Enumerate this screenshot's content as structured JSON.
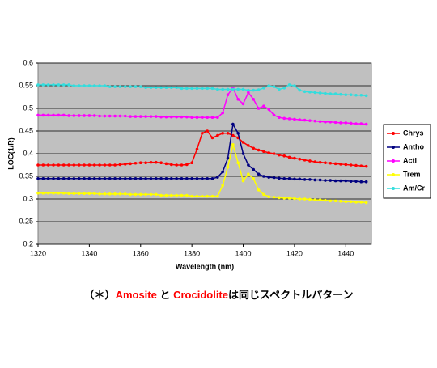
{
  "chart_data": {
    "type": "line",
    "y_label": "LOG(1/R)",
    "x_label": "Wavelength (nm)",
    "xlim": [
      1320,
      1450
    ],
    "xticks": [
      1320,
      1340,
      1360,
      1380,
      1400,
      1420,
      1440
    ],
    "ylim": [
      0.2,
      0.6
    ],
    "yticks": [
      0.2,
      0.25,
      0.3,
      0.35,
      0.4,
      0.45,
      0.5,
      0.55,
      0.6
    ],
    "grid": true,
    "legend": "right",
    "background": "#c0c0c0",
    "x": [
      1320,
      1322,
      1324,
      1326,
      1328,
      1330,
      1332,
      1334,
      1336,
      1338,
      1340,
      1342,
      1344,
      1346,
      1348,
      1350,
      1352,
      1354,
      1356,
      1358,
      1360,
      1362,
      1364,
      1366,
      1368,
      1370,
      1372,
      1374,
      1376,
      1378,
      1380,
      1382,
      1384,
      1386,
      1388,
      1390,
      1392,
      1394,
      1396,
      1398,
      1400,
      1402,
      1404,
      1406,
      1408,
      1410,
      1412,
      1414,
      1416,
      1418,
      1420,
      1422,
      1424,
      1426,
      1428,
      1430,
      1432,
      1434,
      1436,
      1438,
      1440,
      1442,
      1444,
      1446,
      1448
    ],
    "series": [
      {
        "name": "Chrys",
        "color": "#ff0000",
        "values": [
          0.375,
          0.375,
          0.375,
          0.375,
          0.375,
          0.375,
          0.375,
          0.375,
          0.375,
          0.375,
          0.375,
          0.375,
          0.375,
          0.375,
          0.375,
          0.375,
          0.376,
          0.377,
          0.378,
          0.379,
          0.38,
          0.38,
          0.381,
          0.381,
          0.38,
          0.378,
          0.376,
          0.375,
          0.375,
          0.376,
          0.38,
          0.41,
          0.445,
          0.45,
          0.435,
          0.44,
          0.445,
          0.445,
          0.44,
          0.435,
          0.425,
          0.418,
          0.412,
          0.408,
          0.405,
          0.402,
          0.4,
          0.397,
          0.395,
          0.392,
          0.39,
          0.388,
          0.386,
          0.384,
          0.382,
          0.381,
          0.38,
          0.379,
          0.378,
          0.377,
          0.376,
          0.375,
          0.374,
          0.373,
          0.372
        ]
      },
      {
        "name": "Antho",
        "color": "#000080",
        "values": [
          0.345,
          0.345,
          0.345,
          0.345,
          0.345,
          0.345,
          0.345,
          0.345,
          0.345,
          0.345,
          0.345,
          0.345,
          0.345,
          0.345,
          0.345,
          0.345,
          0.345,
          0.345,
          0.345,
          0.345,
          0.345,
          0.345,
          0.345,
          0.345,
          0.345,
          0.345,
          0.345,
          0.345,
          0.345,
          0.345,
          0.345,
          0.345,
          0.345,
          0.345,
          0.345,
          0.348,
          0.36,
          0.39,
          0.465,
          0.445,
          0.4,
          0.375,
          0.365,
          0.355,
          0.35,
          0.348,
          0.347,
          0.346,
          0.345,
          0.345,
          0.344,
          0.344,
          0.343,
          0.343,
          0.342,
          0.342,
          0.341,
          0.341,
          0.34,
          0.34,
          0.34,
          0.339,
          0.339,
          0.338,
          0.338
        ]
      },
      {
        "name": "Acti",
        "color": "#ff00ff",
        "values": [
          0.485,
          0.485,
          0.485,
          0.485,
          0.485,
          0.485,
          0.484,
          0.484,
          0.484,
          0.484,
          0.484,
          0.484,
          0.483,
          0.483,
          0.483,
          0.483,
          0.483,
          0.483,
          0.482,
          0.482,
          0.482,
          0.482,
          0.482,
          0.482,
          0.481,
          0.481,
          0.481,
          0.481,
          0.481,
          0.481,
          0.48,
          0.48,
          0.48,
          0.48,
          0.48,
          0.48,
          0.49,
          0.53,
          0.545,
          0.52,
          0.51,
          0.535,
          0.52,
          0.5,
          0.505,
          0.498,
          0.485,
          0.48,
          0.478,
          0.477,
          0.476,
          0.475,
          0.474,
          0.473,
          0.472,
          0.471,
          0.47,
          0.47,
          0.469,
          0.468,
          0.468,
          0.467,
          0.466,
          0.466,
          0.465
        ]
      },
      {
        "name": "Trem",
        "color": "#ffff00",
        "values": [
          0.313,
          0.313,
          0.313,
          0.313,
          0.313,
          0.313,
          0.312,
          0.312,
          0.312,
          0.312,
          0.312,
          0.312,
          0.311,
          0.311,
          0.311,
          0.311,
          0.311,
          0.311,
          0.31,
          0.31,
          0.31,
          0.31,
          0.31,
          0.31,
          0.308,
          0.308,
          0.308,
          0.308,
          0.308,
          0.308,
          0.306,
          0.306,
          0.306,
          0.306,
          0.306,
          0.306,
          0.33,
          0.37,
          0.42,
          0.38,
          0.34,
          0.355,
          0.345,
          0.32,
          0.31,
          0.305,
          0.304,
          0.303,
          0.302,
          0.302,
          0.301,
          0.3,
          0.3,
          0.299,
          0.298,
          0.298,
          0.297,
          0.296,
          0.296,
          0.295,
          0.294,
          0.294,
          0.293,
          0.293,
          0.292
        ]
      },
      {
        "name": "Am/Cr",
        "color": "#33dddd",
        "values": [
          0.552,
          0.552,
          0.552,
          0.552,
          0.552,
          0.552,
          0.552,
          0.55,
          0.55,
          0.55,
          0.55,
          0.55,
          0.55,
          0.55,
          0.548,
          0.548,
          0.548,
          0.548,
          0.548,
          0.548,
          0.548,
          0.546,
          0.546,
          0.546,
          0.546,
          0.546,
          0.546,
          0.546,
          0.544,
          0.544,
          0.544,
          0.544,
          0.544,
          0.544,
          0.544,
          0.542,
          0.542,
          0.542,
          0.542,
          0.542,
          0.542,
          0.54,
          0.54,
          0.541,
          0.545,
          0.55,
          0.548,
          0.542,
          0.545,
          0.552,
          0.55,
          0.54,
          0.537,
          0.536,
          0.535,
          0.534,
          0.533,
          0.532,
          0.532,
          0.531,
          0.53,
          0.53,
          0.529,
          0.529,
          0.528
        ]
      }
    ],
    "note": [
      {
        "text": "（＊）",
        "color": "#000000"
      },
      {
        "text": "Amosite",
        "color": "#ff0000"
      },
      {
        "text": " と ",
        "color": "#000000"
      },
      {
        "text": "Crocidolite",
        "color": "#ff0000"
      },
      {
        "text": "は同じスペクトルパターン",
        "color": "#000000"
      }
    ]
  }
}
